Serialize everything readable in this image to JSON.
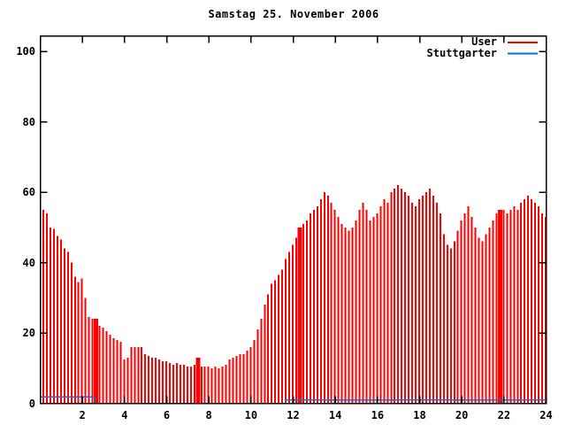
{
  "title": "Samstag 25. November 2006",
  "colors": {
    "user": "#ff0000",
    "stuttgarter": "#0d6fe6",
    "axis": "#000000",
    "background": "#ffffff"
  },
  "legend": {
    "position": "top-right",
    "items": [
      {
        "label": "User",
        "color": "#ff0000"
      },
      {
        "label": "Stuttgarter",
        "color": "#0d6fe6"
      }
    ]
  },
  "chart_data": {
    "type": "bar",
    "title": "Samstag 25. November 2006",
    "xlabel": "",
    "ylabel": "",
    "xlim": [
      0,
      24
    ],
    "ylim": [
      0,
      104
    ],
    "x_ticks": [
      2,
      4,
      6,
      8,
      10,
      12,
      14,
      16,
      18,
      20,
      22,
      24
    ],
    "y_ticks": [
      0,
      20,
      40,
      60,
      80,
      100
    ],
    "grid": false,
    "x_unit": "hour of day",
    "sample_step_minutes": 10,
    "series": [
      {
        "name": "User",
        "style": "impulses",
        "color": "#ff0000",
        "x_start_hour": 0,
        "x_step_hours": 0.166667,
        "values": [
          55,
          54,
          50,
          49.5,
          47.5,
          46.5,
          44,
          43,
          40,
          36,
          34.5,
          35.5,
          30,
          24.5,
          24,
          24,
          22,
          21.5,
          20.5,
          19.5,
          18.5,
          18,
          17.5,
          12.5,
          13,
          16,
          16,
          16,
          16,
          14,
          13.5,
          13,
          13,
          12.5,
          12,
          12,
          11.5,
          11,
          11.5,
          11,
          11,
          10.5,
          10.5,
          11,
          13,
          10.5,
          10.5,
          10.5,
          10,
          10.5,
          10,
          10.5,
          11,
          12.5,
          13,
          13.5,
          14,
          14,
          15,
          16,
          18,
          21,
          24,
          28,
          31,
          34,
          35,
          36.5,
          38,
          41,
          43,
          45,
          47,
          50,
          51,
          52,
          54,
          55,
          56,
          58,
          60,
          59,
          57,
          55,
          53,
          51,
          50,
          49,
          50,
          52,
          55,
          57,
          55,
          52,
          53,
          54,
          56,
          58,
          57,
          60,
          61,
          62,
          61,
          60,
          59,
          57,
          56,
          58,
          59,
          60,
          61,
          59,
          57,
          54,
          48,
          45,
          44,
          46,
          49,
          52,
          54,
          56,
          53,
          50,
          47,
          46,
          48,
          50,
          52,
          54,
          55,
          55,
          54,
          55,
          56,
          55,
          57,
          58,
          59,
          58,
          57,
          56,
          54,
          53
        ],
        "wide_bins": [
          15,
          44,
          73,
          130
        ]
      },
      {
        "name": "Stuttgarter",
        "style": "line",
        "color": "#0d6fe6",
        "segments": [
          {
            "from_hour": 0.0,
            "to_hour": 2.57,
            "value": 1.8
          },
          {
            "from_hour": 11.64,
            "to_hour": 24.0,
            "value": 1.0
          }
        ]
      }
    ]
  }
}
